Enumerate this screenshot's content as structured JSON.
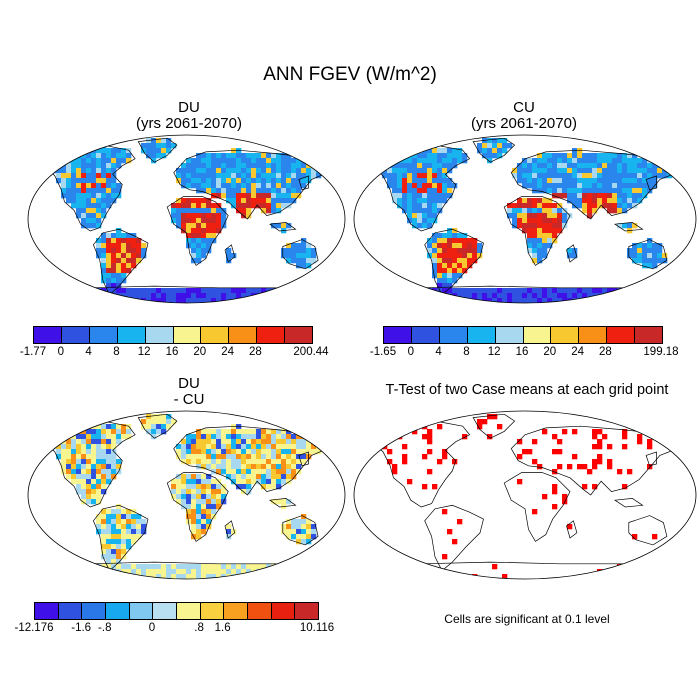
{
  "figure": {
    "title": "ANN FGEV (W/m^2)",
    "note": "Cells are significant at 0.1 level"
  },
  "panels": [
    {
      "id": "du",
      "title_line1": "DU",
      "title_line2": "(yrs 2061-2070)",
      "land_scheme": "abs"
    },
    {
      "id": "cu",
      "title_line1": "CU",
      "title_line2": "(yrs 2061-2070)",
      "land_scheme": "abs"
    },
    {
      "id": "diff",
      "title_line1": "DU",
      "title_line2": "- CU",
      "land_scheme": "diff"
    },
    {
      "id": "ttest",
      "title_line1": "T-Test of two Case means at each grid point",
      "land_scheme": "ttest"
    }
  ],
  "colorbars": [
    {
      "id": "du",
      "colors": [
        "#4010e8",
        "#2f52e0",
        "#2a86ec",
        "#18b4f0",
        "#a8d8f0",
        "#f8f490",
        "#f8c830",
        "#f89018",
        "#f02010",
        "#c82828"
      ],
      "labels": [
        "-1.77",
        "0",
        "4",
        "8",
        "12",
        "16",
        "20",
        "24",
        "28",
        "200.44"
      ]
    },
    {
      "id": "cu",
      "colors": [
        "#4010e8",
        "#2f52e0",
        "#2a86ec",
        "#18b4f0",
        "#a8d8f0",
        "#f8f490",
        "#f8c830",
        "#f89018",
        "#f02010",
        "#c82828"
      ],
      "labels": [
        "-1.65",
        "0",
        "4",
        "8",
        "12",
        "16",
        "20",
        "24",
        "28",
        "199.18"
      ]
    },
    {
      "id": "diff",
      "colors": [
        "#4010e8",
        "#2f52e0",
        "#2a78e8",
        "#18a8f0",
        "#80c8f0",
        "#b8e0f0",
        "#f8f490",
        "#f8d040",
        "#f8a020",
        "#f05010",
        "#e82010",
        "#c82828"
      ],
      "labels": [
        "-12.176",
        "-1.6",
        "-.8",
        "0",
        ".8",
        "1.6",
        "10.116"
      ]
    }
  ],
  "legend": {
    "abs_colors": [
      "#2a86ec",
      "#18b4f0",
      "#f02010",
      "#c82828",
      "#f8c830",
      "#a8d8f0"
    ],
    "diff_colors": [
      "#f8f490",
      "#a8d8f0",
      "#f8c830",
      "#f89018",
      "#18b4f0",
      "#2f52e0"
    ],
    "ttest_color": "#ff0000"
  }
}
